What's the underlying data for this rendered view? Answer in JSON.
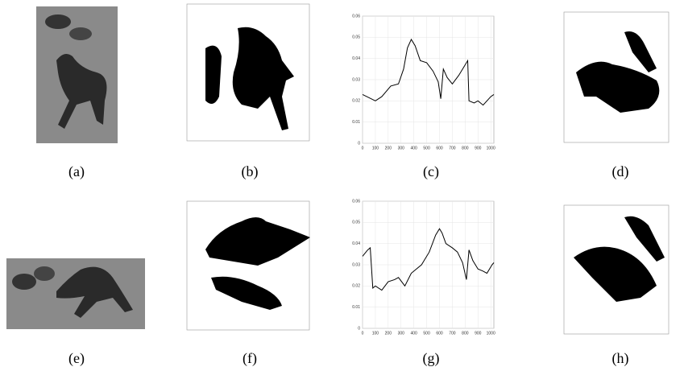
{
  "panels": {
    "labels": [
      "(a)",
      "(b)",
      "(c)",
      "(d)",
      "(e)",
      "(f)",
      "(g)",
      "(h)"
    ]
  },
  "chart_data": [
    {
      "type": "line",
      "color": "#000000",
      "x": [
        0,
        100,
        150,
        220,
        280,
        320,
        350,
        380,
        410,
        450,
        500,
        550,
        590,
        610,
        630,
        660,
        700,
        750,
        790,
        820,
        830,
        870,
        900,
        940,
        1000,
        1024
      ],
      "values": [
        0.023,
        0.02,
        0.022,
        0.027,
        0.028,
        0.035,
        0.045,
        0.049,
        0.046,
        0.039,
        0.038,
        0.034,
        0.029,
        0.021,
        0.035,
        0.031,
        0.028,
        0.032,
        0.036,
        0.039,
        0.02,
        0.019,
        0.02,
        0.018,
        0.022,
        0.023
      ],
      "xlim": [
        0,
        1024
      ],
      "xticks": [
        0,
        100,
        200,
        300,
        400,
        500,
        600,
        700,
        800,
        900,
        1000
      ],
      "ylim": [
        0,
        0.06
      ],
      "yticks": [
        0,
        0.01,
        0.02,
        0.03,
        0.04,
        0.05,
        0.06
      ]
    },
    {
      "type": "line",
      "color": "#000000",
      "x": [
        0,
        40,
        60,
        80,
        100,
        150,
        200,
        250,
        280,
        330,
        380,
        420,
        460,
        520,
        570,
        600,
        620,
        650,
        700,
        740,
        780,
        810,
        830,
        860,
        900,
        940,
        970,
        1010,
        1024
      ],
      "values": [
        0.034,
        0.037,
        0.038,
        0.019,
        0.02,
        0.018,
        0.022,
        0.023,
        0.024,
        0.02,
        0.026,
        0.028,
        0.03,
        0.036,
        0.044,
        0.047,
        0.045,
        0.04,
        0.038,
        0.036,
        0.031,
        0.023,
        0.037,
        0.032,
        0.028,
        0.027,
        0.026,
        0.03,
        0.031
      ],
      "xlim": [
        0,
        1024
      ],
      "xticks": [
        0,
        100,
        200,
        300,
        400,
        500,
        600,
        700,
        800,
        900,
        1000
      ],
      "ylim": [
        0,
        0.06
      ],
      "yticks": [
        0,
        0.01,
        0.02,
        0.03,
        0.04,
        0.05,
        0.06
      ]
    }
  ]
}
